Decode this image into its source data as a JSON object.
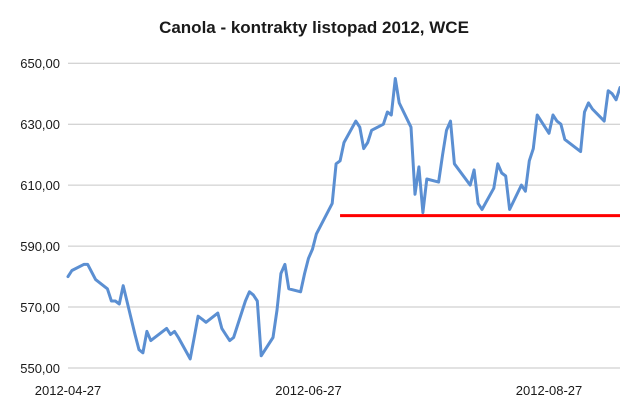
{
  "chart_data": {
    "type": "line",
    "title": "Canola - kontrakty listopad 2012, WCE",
    "xlabel": "",
    "ylabel": "",
    "ylim": [
      550,
      655
    ],
    "yticks": [
      550,
      570,
      590,
      610,
      630,
      650
    ],
    "ytick_labels": [
      "550,00",
      "570,00",
      "590,00",
      "610,00",
      "630,00",
      "650,00"
    ],
    "xticks": [
      "2012-04-27",
      "2012-06-27",
      "2012-08-27"
    ],
    "grid": true,
    "colors": {
      "series": "#5b8fd2",
      "reference": "#ff0000",
      "grid": "#c6c6c6"
    },
    "series": [
      {
        "x": [
          "2012-04-27",
          "2012-04-28",
          "2012-05-01",
          "2012-05-02",
          "2012-05-04",
          "2012-05-07",
          "2012-05-08",
          "2012-05-09",
          "2012-05-10",
          "2012-05-11",
          "2012-05-14",
          "2012-05-15",
          "2012-05-16",
          "2012-05-17",
          "2012-05-18",
          "2012-05-22",
          "2012-05-23",
          "2012-05-24",
          "2012-05-25",
          "2012-05-28",
          "2012-05-29",
          "2012-05-30",
          "2012-05-31",
          "2012-06-01",
          "2012-06-04",
          "2012-06-05",
          "2012-06-06",
          "2012-06-07",
          "2012-06-08",
          "2012-06-11",
          "2012-06-12",
          "2012-06-13",
          "2012-06-14",
          "2012-06-15",
          "2012-06-18",
          "2012-06-19",
          "2012-06-20",
          "2012-06-21",
          "2012-06-22",
          "2012-06-25",
          "2012-06-26",
          "2012-06-27",
          "2012-06-28",
          "2012-06-29",
          "2012-07-03",
          "2012-07-04",
          "2012-07-05",
          "2012-07-06",
          "2012-07-09",
          "2012-07-10",
          "2012-07-11",
          "2012-07-12",
          "2012-07-13",
          "2012-07-16",
          "2012-07-17",
          "2012-07-18",
          "2012-07-19",
          "2012-07-20",
          "2012-07-23",
          "2012-07-24",
          "2012-07-25",
          "2012-07-26",
          "2012-07-27",
          "2012-07-30",
          "2012-07-31",
          "2012-08-01",
          "2012-08-02",
          "2012-08-03",
          "2012-08-07",
          "2012-08-08",
          "2012-08-09",
          "2012-08-10",
          "2012-08-13",
          "2012-08-14",
          "2012-08-15",
          "2012-08-16",
          "2012-08-17",
          "2012-08-20",
          "2012-08-21",
          "2012-08-22",
          "2012-08-23",
          "2012-08-24",
          "2012-08-27",
          "2012-08-28",
          "2012-08-29",
          "2012-08-30",
          "2012-08-31",
          "2012-09-04",
          "2012-09-05",
          "2012-09-06",
          "2012-09-07",
          "2012-09-10",
          "2012-09-11",
          "2012-09-12",
          "2012-09-13",
          "2012-09-14"
        ],
        "values": [
          580,
          582,
          584,
          584,
          579,
          576,
          572,
          572,
          571,
          577,
          561,
          556,
          555,
          562,
          559,
          563,
          561,
          562,
          560,
          553,
          560,
          567,
          566,
          565,
          568,
          563,
          561,
          559,
          560,
          572,
          575,
          574,
          572,
          554,
          560,
          569,
          581,
          584,
          576,
          575,
          581,
          586,
          589,
          594,
          604,
          617,
          618,
          624,
          631,
          629,
          622,
          624,
          628,
          630,
          634,
          633,
          645,
          637,
          629,
          607,
          616,
          601,
          612,
          611,
          620,
          628,
          631,
          617,
          610,
          615,
          604,
          602,
          609,
          617,
          614,
          613,
          602,
          610,
          608,
          618,
          622,
          633,
          627,
          633,
          631,
          630,
          625,
          621,
          634,
          637,
          635,
          631,
          641,
          640,
          638,
          642
        ]
      }
    ],
    "reference_line": {
      "y": 600,
      "x_from": "2012-07-05"
    }
  }
}
